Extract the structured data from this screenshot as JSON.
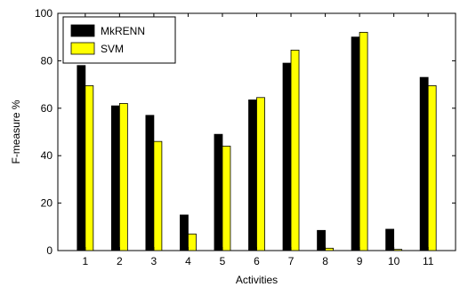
{
  "chart_data": {
    "type": "bar",
    "categories": [
      "1",
      "2",
      "3",
      "4",
      "5",
      "6",
      "7",
      "8",
      "9",
      "10",
      "11"
    ],
    "series": [
      {
        "name": "MkRENN",
        "color": "#000000",
        "values": [
          78,
          61,
          57,
          15,
          49,
          63.5,
          79,
          8.5,
          90,
          9,
          73
        ]
      },
      {
        "name": "SVM",
        "color": "#ffff00",
        "values": [
          69.5,
          62,
          46,
          7,
          44,
          64.5,
          84.5,
          1,
          92,
          0.5,
          69.5
        ]
      }
    ],
    "xlabel": "Activities",
    "ylabel": "F-measure %",
    "ylim": [
      0,
      100
    ],
    "yticks": [
      0,
      20,
      40,
      60,
      80,
      100
    ],
    "grid": false,
    "legend_position": "top-left"
  }
}
